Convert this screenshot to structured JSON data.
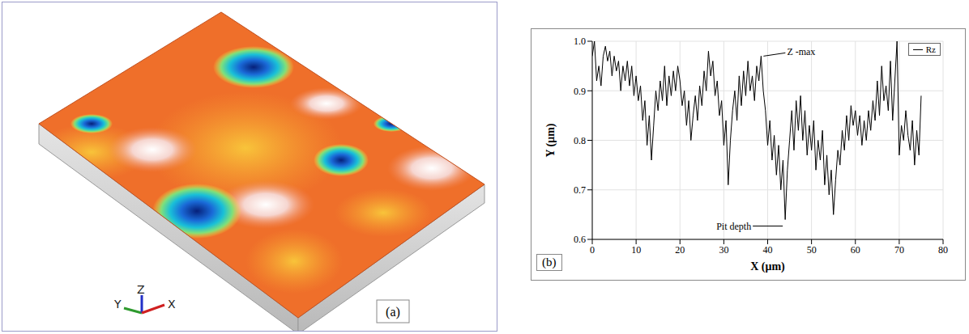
{
  "surface_view": {
    "label": "(a)",
    "axis_labels": [
      "Y",
      "Z",
      "X"
    ]
  },
  "chart_data": {
    "type": "line",
    "panel_label": "(b)",
    "x_label": "X (μm)",
    "y_label": "Y (μm)",
    "x": [
      0,
      0.5,
      1,
      1.5,
      2,
      2.5,
      3,
      3.5,
      4,
      4.5,
      5,
      5.5,
      6,
      6.5,
      7,
      7.5,
      8,
      8.5,
      9,
      9.5,
      10,
      10.5,
      11,
      11.5,
      12,
      12.5,
      13,
      13.5,
      14,
      14.5,
      15,
      15.5,
      16,
      16.5,
      17,
      17.5,
      18,
      18.5,
      19,
      19.5,
      20,
      20.5,
      21,
      21.5,
      22,
      22.5,
      23,
      23.5,
      24,
      24.5,
      25,
      25.5,
      26,
      26.5,
      27,
      27.5,
      28,
      28.5,
      29,
      29.5,
      30,
      30.5,
      31,
      31.5,
      32,
      32.5,
      33,
      33.5,
      34,
      34.5,
      35,
      35.5,
      36,
      36.5,
      37,
      37.5,
      38,
      38.5,
      39,
      39.5,
      40,
      40.5,
      41,
      41.5,
      42,
      42.5,
      43,
      43.5,
      44,
      44.5,
      45,
      45.5,
      46,
      46.5,
      47,
      47.5,
      48,
      48.5,
      49,
      49.5,
      50,
      50.5,
      51,
      51.5,
      52,
      52.5,
      53,
      53.5,
      54,
      54.5,
      55,
      55.5,
      56,
      56.5,
      57,
      57.5,
      58,
      58.5,
      59,
      59.5,
      60,
      60.5,
      61,
      61.5,
      62,
      62.5,
      63,
      63.5,
      64,
      64.5,
      65,
      65.5,
      66,
      66.5,
      67,
      67.5,
      68,
      68.5,
      69,
      69.5,
      70,
      70.5,
      71,
      71.5,
      72,
      72.5,
      73,
      73.5,
      74,
      74.5,
      75
    ],
    "series": [
      {
        "name": "Rz",
        "color": "#000000",
        "values": [
          0.97,
          1.0,
          0.92,
          0.95,
          0.91,
          0.97,
          0.99,
          0.96,
          0.98,
          0.93,
          0.97,
          0.94,
          0.96,
          0.9,
          0.95,
          0.92,
          0.96,
          0.91,
          0.95,
          0.89,
          0.93,
          0.88,
          0.91,
          0.84,
          0.88,
          0.79,
          0.85,
          0.76,
          0.83,
          0.9,
          0.86,
          0.92,
          0.88,
          0.95,
          0.87,
          0.93,
          0.89,
          0.94,
          0.9,
          0.95,
          0.92,
          0.87,
          0.9,
          0.83,
          0.88,
          0.8,
          0.85,
          0.89,
          0.84,
          0.91,
          0.87,
          0.94,
          0.9,
          0.98,
          0.93,
          0.96,
          0.89,
          0.92,
          0.85,
          0.88,
          0.79,
          0.84,
          0.71,
          0.8,
          0.86,
          0.9,
          0.84,
          0.93,
          0.87,
          0.94,
          0.89,
          0.96,
          0.9,
          0.93,
          0.88,
          0.95,
          0.92,
          0.97,
          0.9,
          0.86,
          0.79,
          0.84,
          0.76,
          0.81,
          0.73,
          0.79,
          0.7,
          0.76,
          0.64,
          0.74,
          0.8,
          0.86,
          0.78,
          0.88,
          0.82,
          0.89,
          0.8,
          0.86,
          0.77,
          0.83,
          0.78,
          0.84,
          0.74,
          0.8,
          0.76,
          0.82,
          0.71,
          0.77,
          0.69,
          0.74,
          0.65,
          0.72,
          0.78,
          0.75,
          0.82,
          0.78,
          0.85,
          0.8,
          0.87,
          0.83,
          0.86,
          0.81,
          0.85,
          0.79,
          0.84,
          0.8,
          0.86,
          0.82,
          0.88,
          0.84,
          0.92,
          0.85,
          0.95,
          0.88,
          0.91,
          0.86,
          0.96,
          0.84,
          0.92,
          1.0,
          0.77,
          0.83,
          0.8,
          0.86,
          0.81,
          0.78,
          0.84,
          0.75,
          0.82,
          0.77,
          0.89
        ]
      }
    ],
    "xlim": [
      0,
      80
    ],
    "xticks": [
      0,
      10,
      20,
      30,
      40,
      50,
      60,
      70,
      80
    ],
    "ylim": [
      0.6,
      1
    ],
    "yticks": [
      0.6,
      0.7,
      0.8,
      0.9,
      {
        "value": 1,
        "label": "1.0"
      }
    ],
    "grid": true,
    "legend": "top-right",
    "annotations": [
      {
        "text": "Z -max",
        "x": 38.5,
        "y": 0.97
      },
      {
        "text": "Pit depth",
        "x": 44,
        "y": 0.64
      }
    ]
  }
}
